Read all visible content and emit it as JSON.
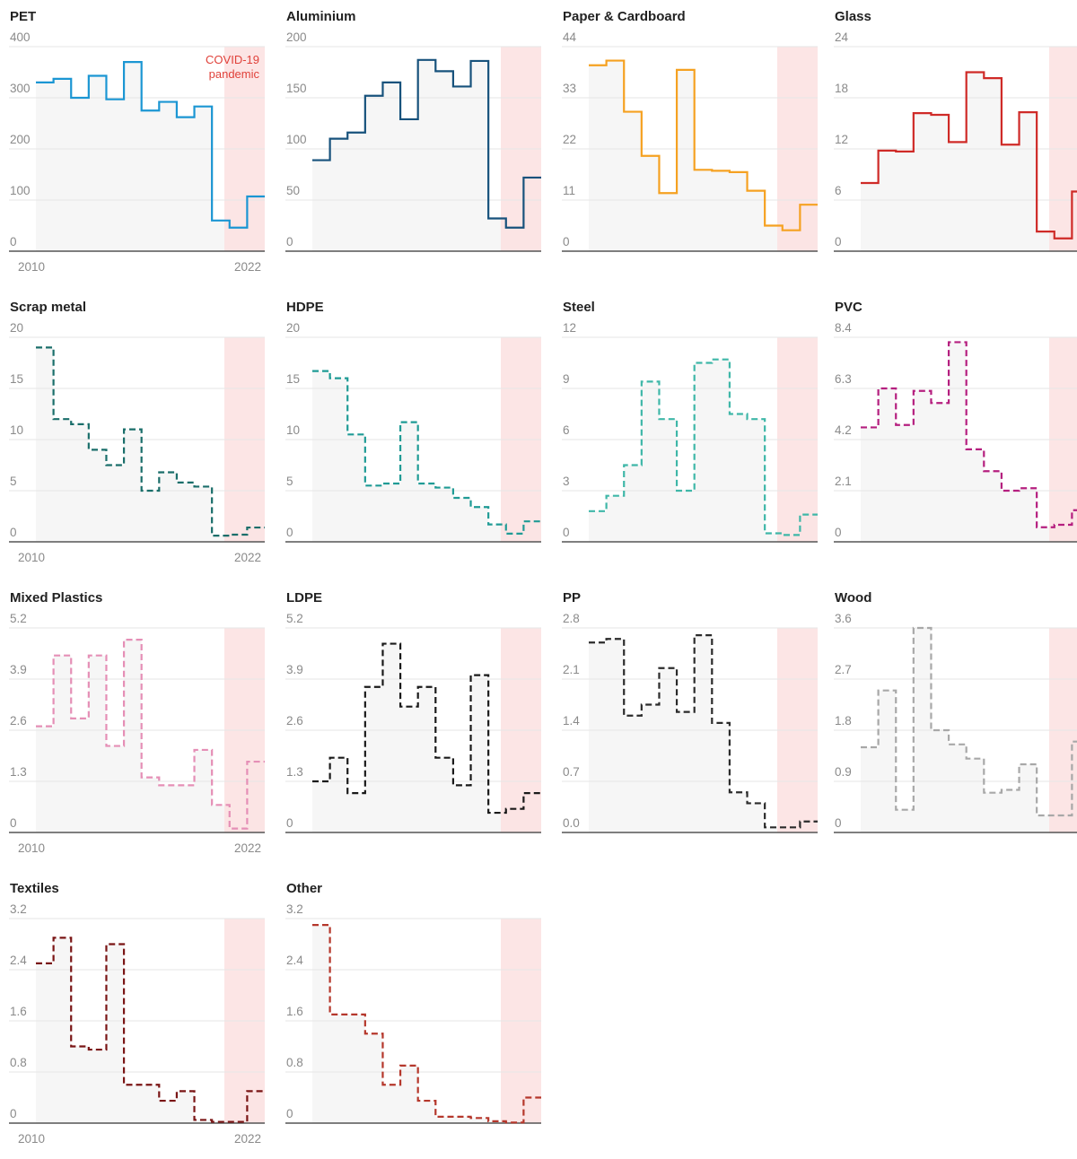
{
  "colors": {
    "covid_shade": "#fbe0e0",
    "plot_bg": "#f6f6f6",
    "gridline": "#e6e6e6",
    "baseline": "#555555",
    "tick_text": "#8a8a8a",
    "annotation": "#e0413a"
  },
  "chart_data": [
    {
      "type": "line",
      "step": true,
      "dashed": false,
      "title": "PET",
      "color": "#1b96d3",
      "ylim": [
        0,
        400
      ],
      "yticks": [
        "0",
        "100",
        "200",
        "300",
        "400"
      ],
      "xticks": [
        "2010",
        "2022"
      ],
      "annotation": [
        "COVID-19",
        "pandemic"
      ],
      "series": [
        {
          "x": [
            2010,
            2011,
            2012,
            2013,
            2014,
            2015,
            2016,
            2017,
            2018,
            2019,
            2020,
            2021,
            2022
          ],
          "y": [
            330,
            337,
            300,
            343,
            297,
            370,
            275,
            292,
            262,
            283,
            60,
            46,
            107
          ]
        }
      ]
    },
    {
      "type": "line",
      "step": true,
      "dashed": false,
      "title": "Aluminium",
      "color": "#17527c",
      "ylim": [
        0,
        200
      ],
      "yticks": [
        "0",
        "50",
        "100",
        "150",
        "200"
      ],
      "xticks": [],
      "series": [
        {
          "x": [
            2010,
            2011,
            2012,
            2013,
            2014,
            2015,
            2016,
            2017,
            2018,
            2019,
            2020,
            2021,
            2022
          ],
          "y": [
            89,
            110,
            116,
            152,
            165,
            129,
            187,
            176,
            161,
            186,
            32,
            23,
            72
          ]
        }
      ]
    },
    {
      "type": "line",
      "step": true,
      "dashed": false,
      "title": "Paper & Cardboard",
      "color": "#f5a121",
      "ylim": [
        0,
        44
      ],
      "yticks": [
        "0",
        "11",
        "22",
        "33",
        "44"
      ],
      "xticks": [],
      "series": [
        {
          "x": [
            2010,
            2011,
            2012,
            2013,
            2014,
            2015,
            2016,
            2017,
            2018,
            2019,
            2020,
            2021,
            2022
          ],
          "y": [
            40,
            41,
            30,
            20.5,
            12.5,
            39,
            17.5,
            17.3,
            17,
            13,
            5.5,
            4.5,
            10
          ]
        }
      ]
    },
    {
      "type": "line",
      "step": true,
      "dashed": false,
      "title": "Glass",
      "color": "#cf2a27",
      "ylim": [
        0,
        24
      ],
      "yticks": [
        "0",
        "6",
        "12",
        "18",
        "24"
      ],
      "xticks": [],
      "series": [
        {
          "x": [
            2010,
            2011,
            2012,
            2013,
            2014,
            2015,
            2016,
            2017,
            2018,
            2019,
            2020,
            2021,
            2022
          ],
          "y": [
            8,
            11.8,
            11.7,
            16.2,
            16,
            12.8,
            21,
            20.3,
            12.5,
            16.3,
            2.3,
            1.5,
            7
          ]
        }
      ]
    },
    {
      "type": "line",
      "step": true,
      "dashed": true,
      "title": "Scrap metal",
      "color": "#1a6e6a",
      "ylim": [
        0,
        20
      ],
      "yticks": [
        "0",
        "5",
        "10",
        "15",
        "20"
      ],
      "xticks": [
        "2010",
        "2022"
      ],
      "series": [
        {
          "x": [
            2010,
            2011,
            2012,
            2013,
            2014,
            2015,
            2016,
            2017,
            2018,
            2019,
            2020,
            2021,
            2022
          ],
          "y": [
            19,
            12,
            11.5,
            9,
            7.5,
            11,
            5,
            6.8,
            5.8,
            5.4,
            0.6,
            0.7,
            1.4
          ]
        }
      ]
    },
    {
      "type": "line",
      "step": true,
      "dashed": true,
      "title": "HDPE",
      "color": "#1f9b95",
      "ylim": [
        0,
        20
      ],
      "yticks": [
        "0",
        "5",
        "10",
        "15",
        "20"
      ],
      "xticks": [],
      "series": [
        {
          "x": [
            2010,
            2011,
            2012,
            2013,
            2014,
            2015,
            2016,
            2017,
            2018,
            2019,
            2020,
            2021,
            2022
          ],
          "y": [
            16.7,
            16,
            10.5,
            5.5,
            5.7,
            11.7,
            5.7,
            5.3,
            4.3,
            3.4,
            1.7,
            0.8,
            2
          ]
        }
      ]
    },
    {
      "type": "line",
      "step": true,
      "dashed": true,
      "title": "Steel",
      "color": "#3fb7a8",
      "ylim": [
        0,
        12
      ],
      "yticks": [
        "0",
        "3",
        "6",
        "9",
        "12"
      ],
      "xticks": [],
      "series": [
        {
          "x": [
            2010,
            2011,
            2012,
            2013,
            2014,
            2015,
            2016,
            2017,
            2018,
            2019,
            2020,
            2021,
            2022
          ],
          "y": [
            1.8,
            2.7,
            4.5,
            9.4,
            7.2,
            3,
            10.5,
            10.7,
            7.5,
            7.2,
            0.5,
            0.4,
            1.6
          ]
        }
      ]
    },
    {
      "type": "line",
      "step": true,
      "dashed": true,
      "title": "PVC",
      "color": "#b51f7f",
      "ylim": [
        0,
        8.4
      ],
      "yticks": [
        "0",
        "2.1",
        "4.2",
        "6.3",
        "8.4"
      ],
      "xticks": [],
      "series": [
        {
          "x": [
            2010,
            2011,
            2012,
            2013,
            2014,
            2015,
            2016,
            2017,
            2018,
            2019,
            2020,
            2021,
            2022
          ],
          "y": [
            4.7,
            6.3,
            4.8,
            6.2,
            5.7,
            8.2,
            3.8,
            2.9,
            2.1,
            2.2,
            0.6,
            0.7,
            1.3
          ]
        }
      ]
    },
    {
      "type": "line",
      "step": true,
      "dashed": true,
      "title": "Mixed Plastics",
      "color": "#e58fb6",
      "ylim": [
        0,
        5.2
      ],
      "yticks": [
        "0",
        "1.3",
        "2.6",
        "3.9",
        "5.2"
      ],
      "xticks": [
        "2010",
        "2022"
      ],
      "series": [
        {
          "x": [
            2010,
            2011,
            2012,
            2013,
            2014,
            2015,
            2016,
            2017,
            2018,
            2019,
            2020,
            2021,
            2022
          ],
          "y": [
            2.7,
            4.5,
            2.9,
            4.5,
            2.2,
            4.9,
            1.4,
            1.2,
            1.2,
            2.1,
            0.7,
            0.1,
            1.8
          ]
        }
      ]
    },
    {
      "type": "line",
      "step": true,
      "dashed": true,
      "title": "LDPE",
      "color": "#1a1a1a",
      "ylim": [
        0,
        5.2
      ],
      "yticks": [
        "0",
        "1.3",
        "2.6",
        "3.9",
        "5.2"
      ],
      "xticks": [],
      "series": [
        {
          "x": [
            2010,
            2011,
            2012,
            2013,
            2014,
            2015,
            2016,
            2017,
            2018,
            2019,
            2020,
            2021,
            2022
          ],
          "y": [
            1.3,
            1.9,
            1.0,
            3.7,
            4.8,
            3.2,
            3.7,
            1.9,
            1.2,
            4.0,
            0.5,
            0.6,
            1.0
          ]
        }
      ]
    },
    {
      "type": "line",
      "step": true,
      "dashed": true,
      "title": "PP",
      "color": "#2b2b2b",
      "ylim": [
        0,
        2.8
      ],
      "yticks": [
        "0.0",
        "0.7",
        "1.4",
        "2.1",
        "2.8"
      ],
      "xticks": [],
      "series": [
        {
          "x": [
            2010,
            2011,
            2012,
            2013,
            2014,
            2015,
            2016,
            2017,
            2018,
            2019,
            2020,
            2021,
            2022
          ],
          "y": [
            2.6,
            2.65,
            1.6,
            1.75,
            2.25,
            1.65,
            2.7,
            1.5,
            0.55,
            0.4,
            0.07,
            0.07,
            0.15
          ]
        }
      ]
    },
    {
      "type": "line",
      "step": true,
      "dashed": true,
      "title": "Wood",
      "color": "#a8a8a8",
      "ylim": [
        0,
        3.6
      ],
      "yticks": [
        "0",
        "0.9",
        "1.8",
        "2.7",
        "3.6"
      ],
      "xticks": [],
      "series": [
        {
          "x": [
            2010,
            2011,
            2012,
            2013,
            2014,
            2015,
            2016,
            2017,
            2018,
            2019,
            2020,
            2021,
            2022
          ],
          "y": [
            1.5,
            2.5,
            0.4,
            3.6,
            1.8,
            1.55,
            1.3,
            0.7,
            0.75,
            1.2,
            0.3,
            0.3,
            1.6
          ]
        }
      ]
    },
    {
      "type": "line",
      "step": true,
      "dashed": true,
      "title": "Textiles",
      "color": "#7a1515",
      "ylim": [
        0,
        3.2
      ],
      "yticks": [
        "0",
        "0.8",
        "1.6",
        "2.4",
        "3.2"
      ],
      "xticks": [
        "2010",
        "2022"
      ],
      "series": [
        {
          "x": [
            2010,
            2011,
            2012,
            2013,
            2014,
            2015,
            2016,
            2017,
            2018,
            2019,
            2020,
            2021,
            2022
          ],
          "y": [
            2.5,
            2.9,
            1.2,
            1.15,
            2.8,
            0.6,
            0.6,
            0.35,
            0.5,
            0.05,
            0.02,
            0.02,
            0.5
          ]
        }
      ]
    },
    {
      "type": "line",
      "step": true,
      "dashed": true,
      "title": "Other",
      "color": "#b5372b",
      "ylim": [
        0,
        3.2
      ],
      "yticks": [
        "0",
        "0.8",
        "1.6",
        "2.4",
        "3.2"
      ],
      "xticks": [],
      "series": [
        {
          "x": [
            2010,
            2011,
            2012,
            2013,
            2014,
            2015,
            2016,
            2017,
            2018,
            2019,
            2020,
            2021,
            2022
          ],
          "y": [
            3.1,
            1.7,
            1.7,
            1.4,
            0.6,
            0.9,
            0.35,
            0.1,
            0.1,
            0.08,
            0.03,
            0.01,
            0.4
          ]
        }
      ]
    }
  ]
}
